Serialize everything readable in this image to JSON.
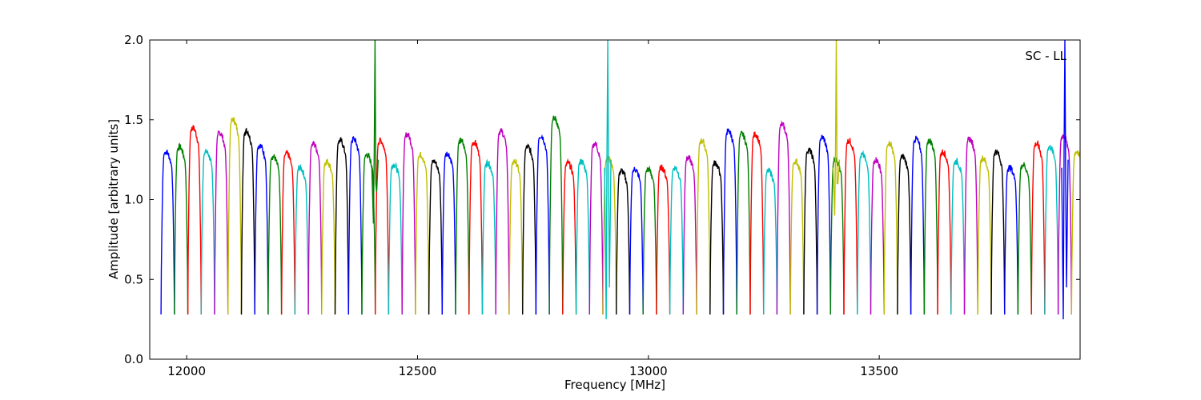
{
  "chart_data": {
    "type": "line",
    "title": "",
    "annotation": "SC - LL",
    "xlabel": "Frequency [MHz]",
    "ylabel": "Amplitude [arbitrary units]",
    "xlim": [
      11920,
      13935
    ],
    "ylim": [
      0.0,
      2.0
    ],
    "x_ticks": [
      12000,
      12500,
      13000,
      13500
    ],
    "x_tick_labels": [
      "12000",
      "12500",
      "13000",
      "13500"
    ],
    "y_ticks": [
      0.0,
      0.5,
      1.0,
      1.5,
      2.0
    ],
    "y_tick_labels": [
      "0.0",
      "0.5",
      "1.0",
      "1.5",
      "2.0"
    ],
    "grid": false,
    "legend": "none",
    "color_cycle": [
      "#0000ff",
      "#008000",
      "#ff0000",
      "#00bfbf",
      "#bf00bf",
      "#bfbf00",
      "#000000"
    ],
    "channel_width_mhz": 29,
    "channel_centers_mhz": [
      11959,
      11988,
      12017,
      12046,
      12075,
      12104,
      12133,
      12162,
      12191,
      12220,
      12249,
      12278,
      12307,
      12336,
      12365,
      12394,
      12423,
      12452,
      12481,
      12510,
      12539,
      12568,
      12597,
      12626,
      12655,
      12684,
      12713,
      12742,
      12771,
      12800,
      12829,
      12858,
      12887,
      12916,
      12945,
      12974,
      13003,
      13032,
      13061,
      13090,
      13119,
      13148,
      13177,
      13206,
      13235,
      13264,
      13293,
      13322,
      13351,
      13380,
      13409,
      13438,
      13467,
      13496,
      13525,
      13554,
      13583,
      13612,
      13641,
      13670,
      13699,
      13728,
      13757,
      13786,
      13815,
      13844,
      13873,
      13902,
      13931
    ],
    "channel_peaks": [
      1.3,
      1.33,
      1.45,
      1.3,
      1.42,
      1.5,
      1.43,
      1.34,
      1.27,
      1.29,
      1.2,
      1.35,
      1.24,
      1.37,
      1.38,
      1.28,
      1.37,
      1.22,
      1.41,
      1.28,
      1.24,
      1.29,
      1.37,
      1.36,
      1.23,
      1.43,
      1.24,
      1.33,
      1.4,
      1.51,
      1.23,
      1.24,
      1.35,
      1.26,
      1.18,
      1.19,
      1.19,
      1.2,
      1.2,
      1.26,
      1.37,
      1.23,
      1.43,
      1.41,
      1.41,
      1.18,
      1.47,
      1.24,
      1.31,
      1.39,
      1.25,
      1.37,
      1.28,
      1.25,
      1.35,
      1.27,
      1.38,
      1.37,
      1.3,
      1.24,
      1.38,
      1.26,
      1.3,
      1.2,
      1.22,
      1.35,
      1.33,
      1.4,
      1.3
    ],
    "channel_floor": 0.28,
    "spikes": [
      {
        "x": 12408,
        "y": 2.0,
        "min": 0.85,
        "color": "#008000"
      },
      {
        "x": 12912,
        "y": 2.0,
        "min": 0.25,
        "color": "#00bfbf"
      },
      {
        "x": 13407,
        "y": 2.0,
        "min": 0.9,
        "color": "#bfbf00"
      },
      {
        "x": 13902,
        "y": 2.0,
        "min": 0.25,
        "color": "#0000ff"
      }
    ]
  }
}
